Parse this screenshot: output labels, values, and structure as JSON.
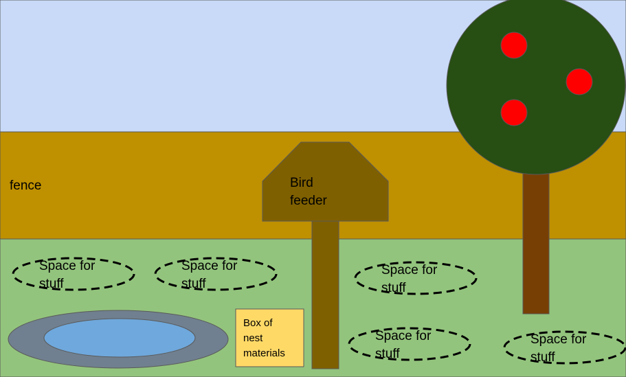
{
  "colors": {
    "sky": "#c9daf8",
    "fence": "#bf9000",
    "grass": "#93c47d",
    "feeder": "#7f6000",
    "tree_canopy": "#274e13",
    "tree_trunk": "#783f04",
    "apple": "#ff0000",
    "pond_rim": "#708090",
    "pond_water": "#6fa8dc",
    "box": "#ffd966",
    "outline": "#595959"
  },
  "labels": {
    "fence": "fence",
    "bird_feeder": "Bird\nfeeder",
    "box": "Box of\nnest\nmaterials"
  },
  "spaces": [
    {
      "label": "Space for\nstuff"
    },
    {
      "label": "Space for\nstuff"
    },
    {
      "label": "Space for\nstuff"
    },
    {
      "label": "Space for\nstuff"
    },
    {
      "label": "Space for\nstuff"
    }
  ]
}
